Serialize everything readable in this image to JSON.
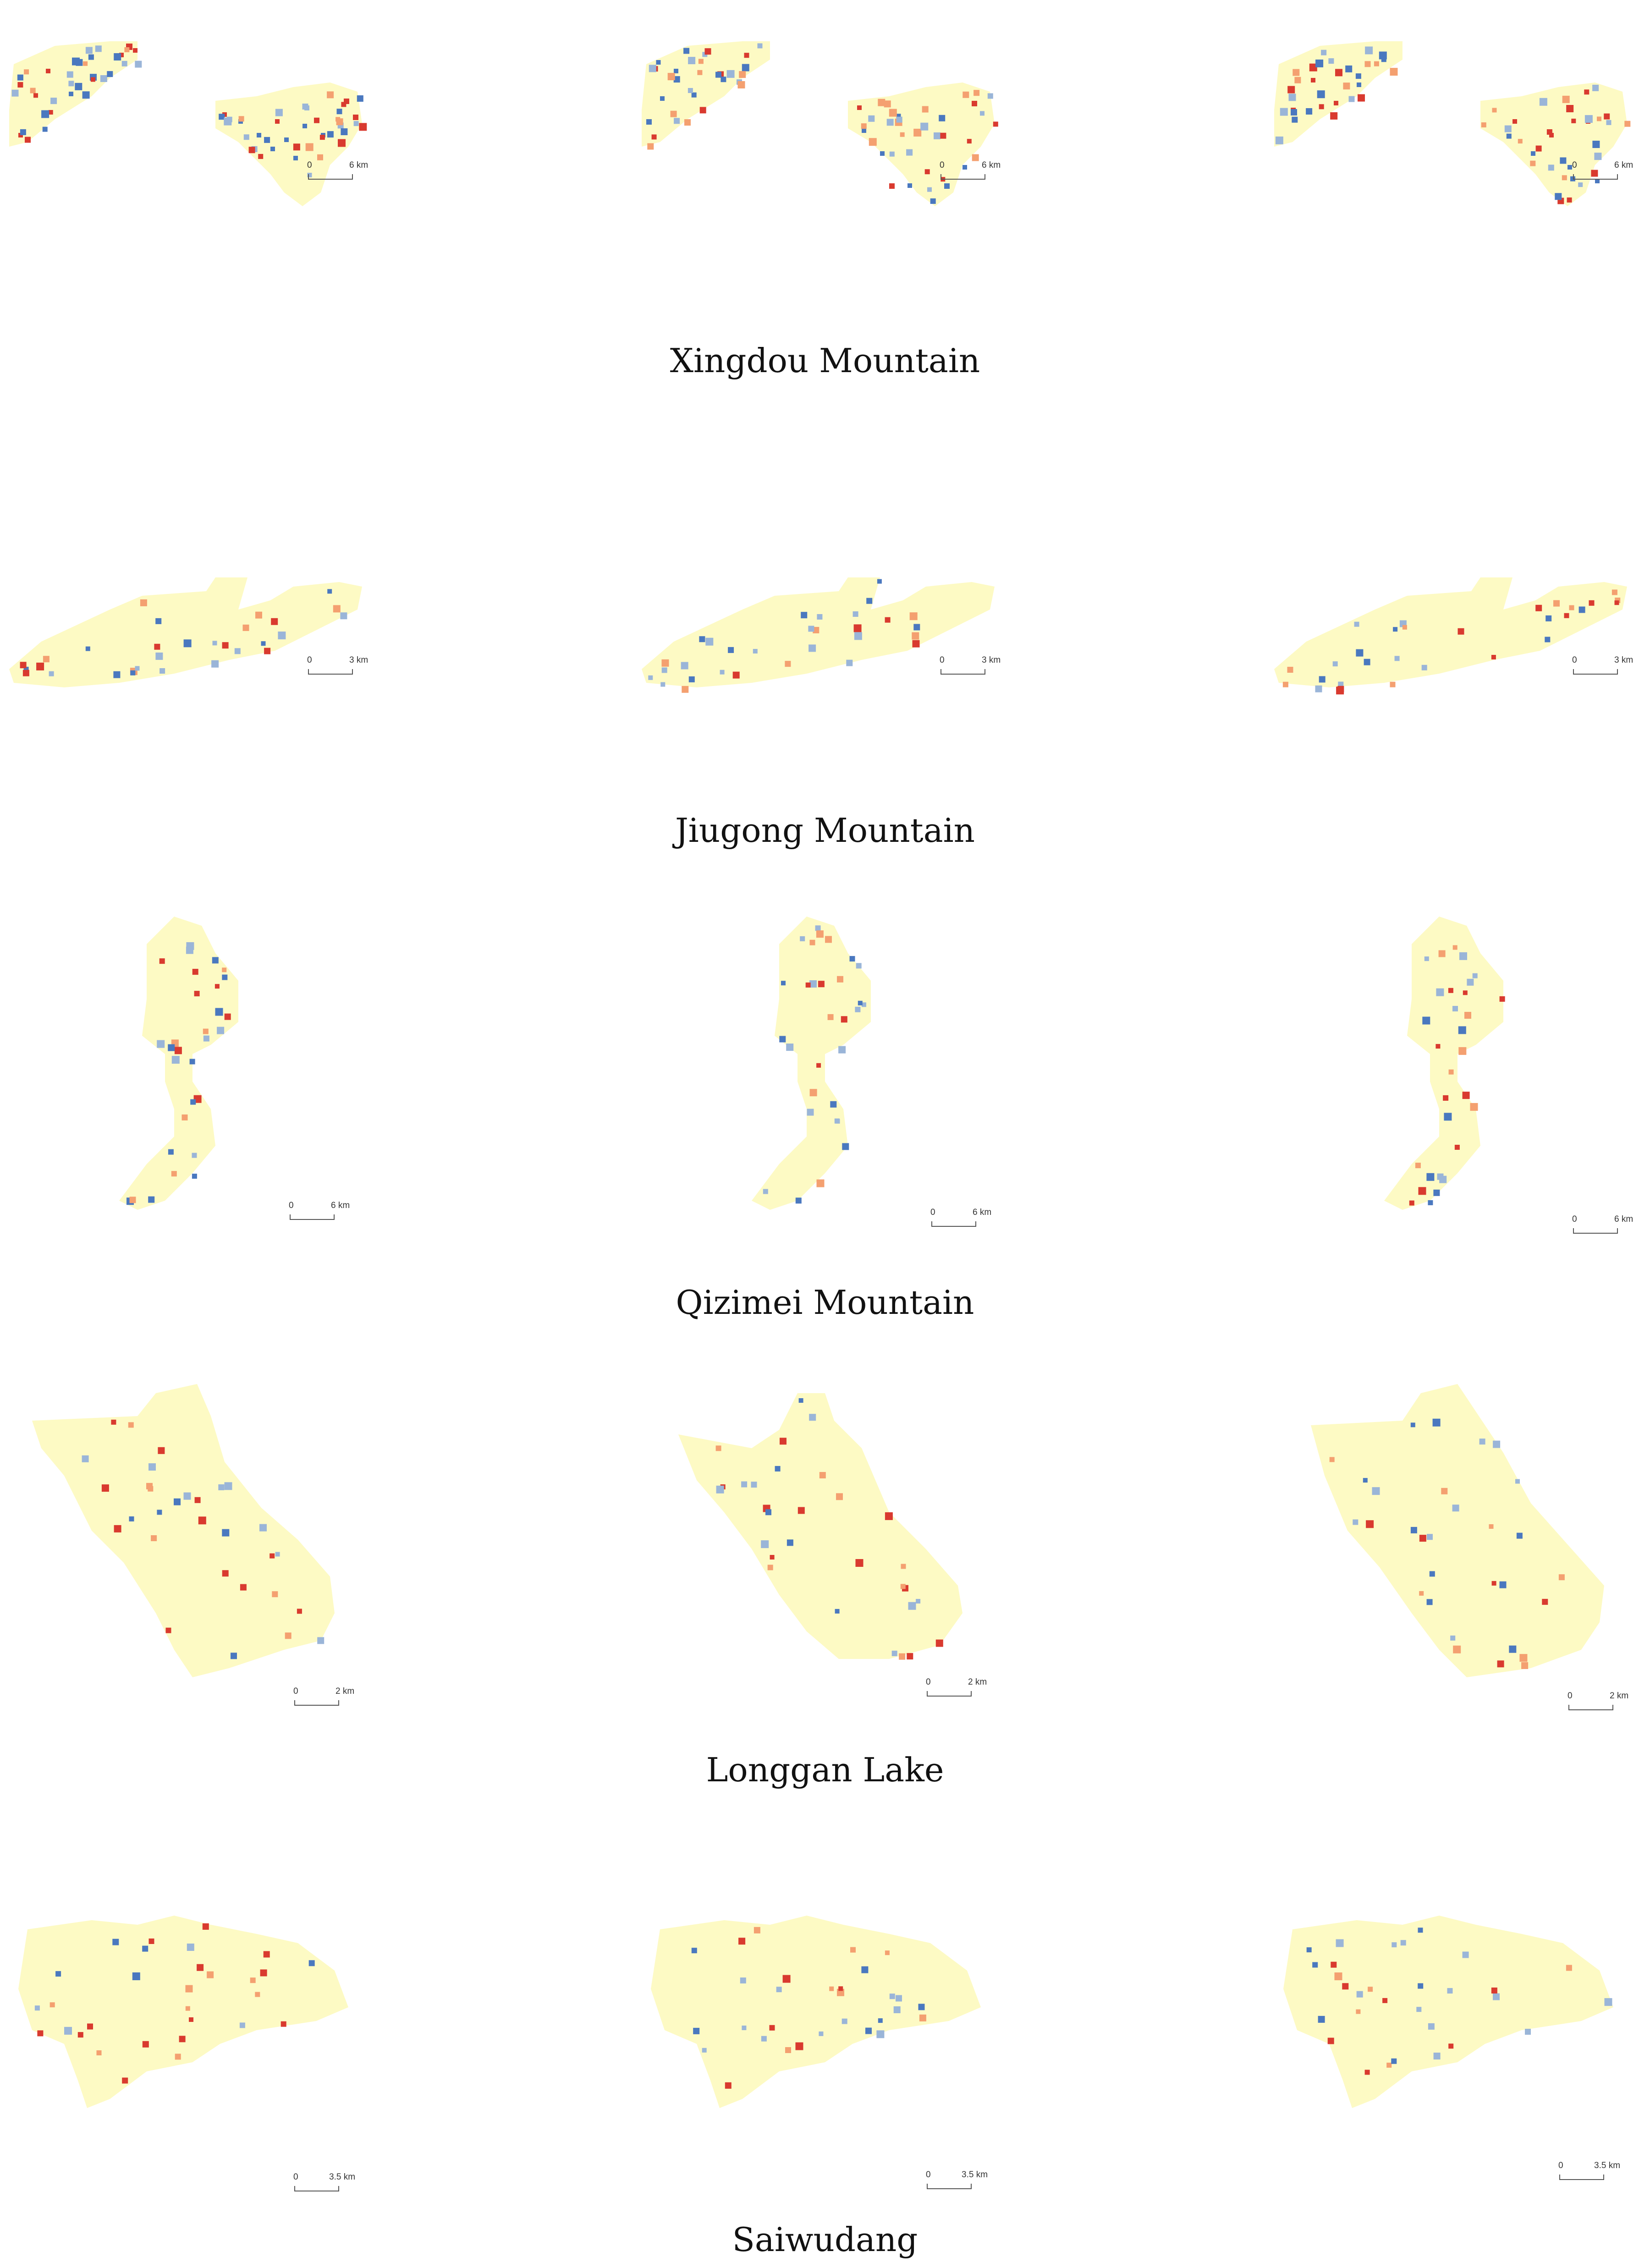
{
  "colors": {
    "land": "#fdfac4",
    "red": "#d93a2f",
    "orange": "#f4a070",
    "blue": "#4a78bf",
    "lightblue": "#9ab5d8",
    "grid": "#e6e1b6"
  },
  "regions": [
    {
      "name": "Xingdou Mountain",
      "panels": [
        {
          "scale_zero": "0",
          "scale_dist": "6 km"
        },
        {
          "scale_zero": "0",
          "scale_dist": "6 km"
        },
        {
          "scale_zero": "0",
          "scale_dist": "6 km"
        }
      ]
    },
    {
      "name": "Jiugong Mountain",
      "panels": [
        {
          "scale_zero": "0",
          "scale_dist": "3 km"
        },
        {
          "scale_zero": "0",
          "scale_dist": "3 km"
        },
        {
          "scale_zero": "0",
          "scale_dist": "3 km"
        }
      ]
    },
    {
      "name": "Qizimei Mountain",
      "panels": [
        {
          "scale_zero": "0",
          "scale_dist": "6 km"
        },
        {
          "scale_zero": "0",
          "scale_dist": "6 km"
        },
        {
          "scale_zero": "0",
          "scale_dist": "6 km"
        }
      ]
    },
    {
      "name": "Longgan Lake",
      "panels": [
        {
          "scale_zero": "0",
          "scale_dist": "2 km"
        },
        {
          "scale_zero": "0",
          "scale_dist": "2 km"
        },
        {
          "scale_zero": "0",
          "scale_dist": "2 km"
        }
      ]
    },
    {
      "name": "Saiwudang",
      "panels": [
        {
          "scale_zero": "0",
          "scale_dist": "3.5 km"
        },
        {
          "scale_zero": "0",
          "scale_dist": "3.5 km"
        },
        {
          "scale_zero": "0",
          "scale_dist": "3.5 km"
        }
      ]
    }
  ]
}
